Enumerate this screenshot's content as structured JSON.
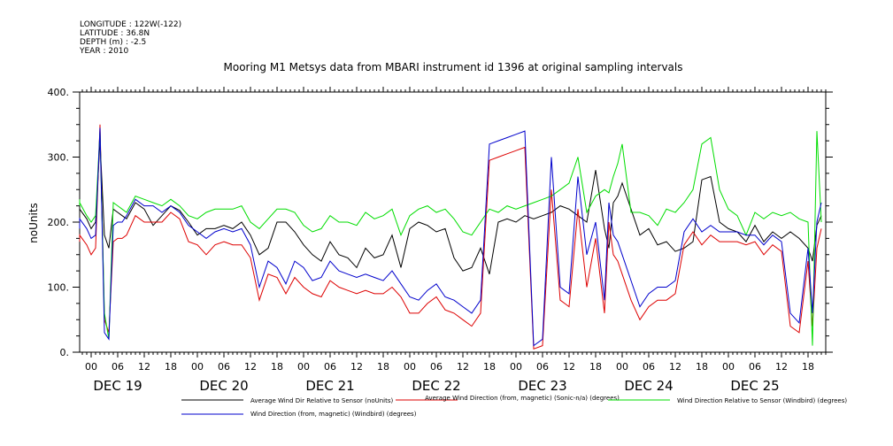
{
  "header": {
    "lines": [
      "LONGITUDE : 122W(-122)",
      "LATITUDE : 36.8N",
      "DEPTH (m) : -2.5",
      "YEAR : 2010"
    ]
  },
  "chart_data": {
    "type": "line",
    "title": "Mooring M1 Metsys data from MBARI instrument id 1396 at original sampling intervals",
    "ylabel": "noUnits",
    "xlabel": "",
    "ylim": [
      0,
      400
    ],
    "yticks": [
      0,
      100,
      200,
      300,
      400
    ],
    "ytick_labels": [
      "0.",
      "100.",
      "200.",
      "300.",
      "400."
    ],
    "xlim": [
      0,
      170
    ],
    "x_unit": "hours from DEC 19 00:00",
    "hour_ticks": [
      {
        "x": -6,
        "label": "18"
      },
      {
        "x": 0,
        "label": "00"
      },
      {
        "x": 6,
        "label": "06"
      },
      {
        "x": 12,
        "label": "12"
      },
      {
        "x": 18,
        "label": "18"
      },
      {
        "x": 24,
        "label": "00"
      },
      {
        "x": 30,
        "label": "06"
      },
      {
        "x": 36,
        "label": "12"
      },
      {
        "x": 42,
        "label": "18"
      },
      {
        "x": 48,
        "label": "00"
      },
      {
        "x": 54,
        "label": "06"
      },
      {
        "x": 60,
        "label": "12"
      },
      {
        "x": 66,
        "label": "18"
      },
      {
        "x": 72,
        "label": "00"
      },
      {
        "x": 78,
        "label": "06"
      },
      {
        "x": 84,
        "label": "12"
      },
      {
        "x": 90,
        "label": "18"
      },
      {
        "x": 96,
        "label": "00"
      },
      {
        "x": 102,
        "label": "06"
      },
      {
        "x": 108,
        "label": "12"
      },
      {
        "x": 114,
        "label": "18"
      },
      {
        "x": 120,
        "label": "00"
      },
      {
        "x": 126,
        "label": "06"
      },
      {
        "x": 132,
        "label": "12"
      },
      {
        "x": 138,
        "label": "18"
      },
      {
        "x": 144,
        "label": "00"
      },
      {
        "x": 150,
        "label": "06"
      },
      {
        "x": 156,
        "label": "12"
      },
      {
        "x": 162,
        "label": "18"
      }
    ],
    "day_labels": [
      {
        "x": 6,
        "label": "DEC 19"
      },
      {
        "x": 30,
        "label": "DEC 20"
      },
      {
        "x": 54,
        "label": "DEC 21"
      },
      {
        "x": 78,
        "label": "DEC 22"
      },
      {
        "x": 102,
        "label": "DEC 23"
      },
      {
        "x": 126,
        "label": "DEC 24"
      },
      {
        "x": 150,
        "label": "DEC 25"
      }
    ],
    "series": [
      {
        "name": "Average Wind Dir Relative to Sensor (noUnits)",
        "color": "#000000",
        "x": [
          -8,
          -6,
          -3,
          -1,
          0,
          1,
          2,
          3,
          4,
          5,
          6,
          7,
          8,
          10,
          12,
          14,
          16,
          18,
          20,
          22,
          24,
          26,
          28,
          30,
          32,
          34,
          36,
          38,
          40,
          42,
          44,
          46,
          48,
          50,
          52,
          54,
          56,
          58,
          60,
          62,
          64,
          66,
          68,
          70,
          72,
          74,
          76,
          78,
          80,
          82,
          84,
          86,
          88,
          90,
          92,
          94,
          96,
          98,
          100,
          102,
          104,
          106,
          108,
          110,
          112,
          114,
          116,
          117,
          118,
          119,
          120,
          122,
          124,
          126,
          128,
          130,
          132,
          134,
          136,
          138,
          140,
          142,
          144,
          146,
          148,
          150,
          152,
          154,
          156,
          158,
          160,
          162,
          163,
          164,
          165
        ],
        "y": [
          200,
          210,
          220,
          205,
          190,
          200,
          325,
          180,
          160,
          220,
          215,
          210,
          205,
          230,
          220,
          195,
          210,
          225,
          218,
          200,
          180,
          190,
          190,
          195,
          190,
          200,
          180,
          150,
          160,
          200,
          200,
          185,
          165,
          150,
          140,
          170,
          150,
          145,
          130,
          160,
          145,
          150,
          180,
          130,
          190,
          200,
          195,
          185,
          190,
          145,
          125,
          130,
          160,
          120,
          200,
          205,
          200,
          210,
          205,
          210,
          215,
          225,
          220,
          210,
          200,
          280,
          190,
          160,
          230,
          240,
          260,
          220,
          180,
          190,
          165,
          170,
          155,
          160,
          170,
          265,
          270,
          200,
          190,
          185,
          170,
          195,
          170,
          185,
          175,
          185,
          175,
          160,
          140,
          195,
          210
        ]
      },
      {
        "name": "Average Wind Direction (from, magnetic) (Sonic-n/a) (degrees)",
        "color": "#dd0000",
        "x": [
          -8,
          -6,
          -3,
          -1,
          0,
          1,
          2,
          3,
          4,
          5,
          6,
          7,
          8,
          10,
          12,
          14,
          16,
          18,
          20,
          22,
          24,
          26,
          28,
          30,
          32,
          34,
          36,
          38,
          40,
          42,
          44,
          46,
          48,
          50,
          52,
          54,
          56,
          58,
          60,
          62,
          64,
          66,
          68,
          70,
          72,
          74,
          76,
          78,
          80,
          82,
          84,
          86,
          88,
          90,
          92,
          94,
          96,
          98,
          100,
          102,
          104,
          106,
          108,
          110,
          112,
          114,
          116,
          117,
          118,
          119,
          120,
          122,
          124,
          126,
          128,
          130,
          132,
          134,
          136,
          138,
          140,
          142,
          144,
          146,
          148,
          150,
          152,
          154,
          156,
          158,
          160,
          162,
          163,
          164,
          165
        ],
        "y": [
          170,
          175,
          180,
          165,
          150,
          160,
          350,
          50,
          30,
          170,
          175,
          175,
          180,
          210,
          200,
          200,
          200,
          215,
          205,
          170,
          165,
          150,
          165,
          170,
          165,
          165,
          145,
          80,
          120,
          115,
          90,
          115,
          100,
          90,
          85,
          110,
          100,
          95,
          90,
          95,
          90,
          90,
          100,
          85,
          60,
          60,
          75,
          85,
          65,
          60,
          50,
          40,
          60,
          295,
          300,
          305,
          310,
          315,
          5,
          10,
          250,
          80,
          70,
          220,
          100,
          175,
          60,
          200,
          150,
          140,
          120,
          80,
          50,
          70,
          80,
          80,
          90,
          165,
          185,
          165,
          180,
          170,
          170,
          170,
          165,
          170,
          150,
          165,
          155,
          40,
          30,
          140,
          40,
          160,
          190
        ]
      },
      {
        "name": "Wind Direction Relative to Sensor (Windbird) (degrees)",
        "color": "#00dd00",
        "x": [
          -8,
          -6,
          -3,
          -1,
          0,
          1,
          2,
          3,
          4,
          5,
          6,
          7,
          8,
          10,
          12,
          14,
          16,
          18,
          20,
          22,
          24,
          26,
          28,
          30,
          32,
          34,
          36,
          38,
          40,
          42,
          44,
          46,
          48,
          50,
          52,
          54,
          56,
          58,
          60,
          62,
          64,
          66,
          68,
          70,
          72,
          74,
          76,
          78,
          80,
          82,
          84,
          86,
          88,
          90,
          92,
          94,
          96,
          98,
          100,
          102,
          104,
          106,
          108,
          110,
          112,
          114,
          116,
          117,
          118,
          119,
          120,
          122,
          124,
          126,
          128,
          130,
          132,
          134,
          136,
          138,
          140,
          142,
          144,
          146,
          148,
          150,
          152,
          154,
          156,
          158,
          160,
          162,
          163,
          164,
          165
        ],
        "y": [
          225,
          235,
          230,
          210,
          200,
          210,
          340,
          60,
          20,
          230,
          225,
          220,
          215,
          240,
          235,
          230,
          225,
          235,
          225,
          210,
          205,
          215,
          220,
          220,
          220,
          225,
          200,
          190,
          205,
          220,
          220,
          215,
          195,
          185,
          190,
          210,
          200,
          200,
          195,
          215,
          205,
          210,
          220,
          180,
          210,
          220,
          225,
          215,
          220,
          205,
          185,
          180,
          200,
          220,
          215,
          225,
          220,
          225,
          230,
          235,
          240,
          250,
          260,
          300,
          215,
          240,
          250,
          245,
          270,
          290,
          320,
          215,
          215,
          210,
          195,
          220,
          215,
          230,
          250,
          320,
          330,
          250,
          220,
          210,
          180,
          215,
          205,
          215,
          210,
          215,
          205,
          200,
          10,
          340,
          200
        ]
      },
      {
        "name": "Wind Direction (from, magnetic) (Windbird) (degrees)",
        "color": "#0000cc",
        "x": [
          -8,
          -6,
          -3,
          -1,
          0,
          1,
          2,
          3,
          4,
          5,
          6,
          7,
          8,
          10,
          12,
          14,
          16,
          18,
          20,
          22,
          24,
          26,
          28,
          30,
          32,
          34,
          36,
          38,
          40,
          42,
          44,
          46,
          48,
          50,
          52,
          54,
          56,
          58,
          60,
          62,
          64,
          66,
          68,
          70,
          72,
          74,
          76,
          78,
          80,
          82,
          84,
          86,
          88,
          90,
          92,
          94,
          96,
          98,
          100,
          102,
          104,
          106,
          108,
          110,
          112,
          114,
          116,
          117,
          118,
          119,
          120,
          122,
          124,
          126,
          128,
          130,
          132,
          134,
          136,
          138,
          140,
          142,
          144,
          146,
          148,
          150,
          152,
          154,
          156,
          158,
          160,
          162,
          163,
          164,
          165
        ],
        "y": [
          190,
          200,
          205,
          190,
          175,
          180,
          345,
          30,
          20,
          195,
          200,
          200,
          210,
          235,
          225,
          225,
          215,
          225,
          215,
          195,
          185,
          175,
          185,
          190,
          185,
          190,
          165,
          100,
          140,
          130,
          105,
          140,
          130,
          110,
          115,
          140,
          125,
          120,
          115,
          120,
          115,
          110,
          125,
          105,
          85,
          80,
          95,
          105,
          85,
          80,
          70,
          60,
          80,
          320,
          325,
          330,
          335,
          340,
          10,
          20,
          300,
          100,
          90,
          270,
          150,
          200,
          80,
          230,
          180,
          170,
          150,
          110,
          70,
          90,
          100,
          100,
          110,
          185,
          205,
          185,
          195,
          185,
          185,
          185,
          180,
          180,
          165,
          180,
          170,
          60,
          45,
          160,
          60,
          200,
          230
        ]
      }
    ],
    "legend_placement": "bottom",
    "grid": false
  }
}
